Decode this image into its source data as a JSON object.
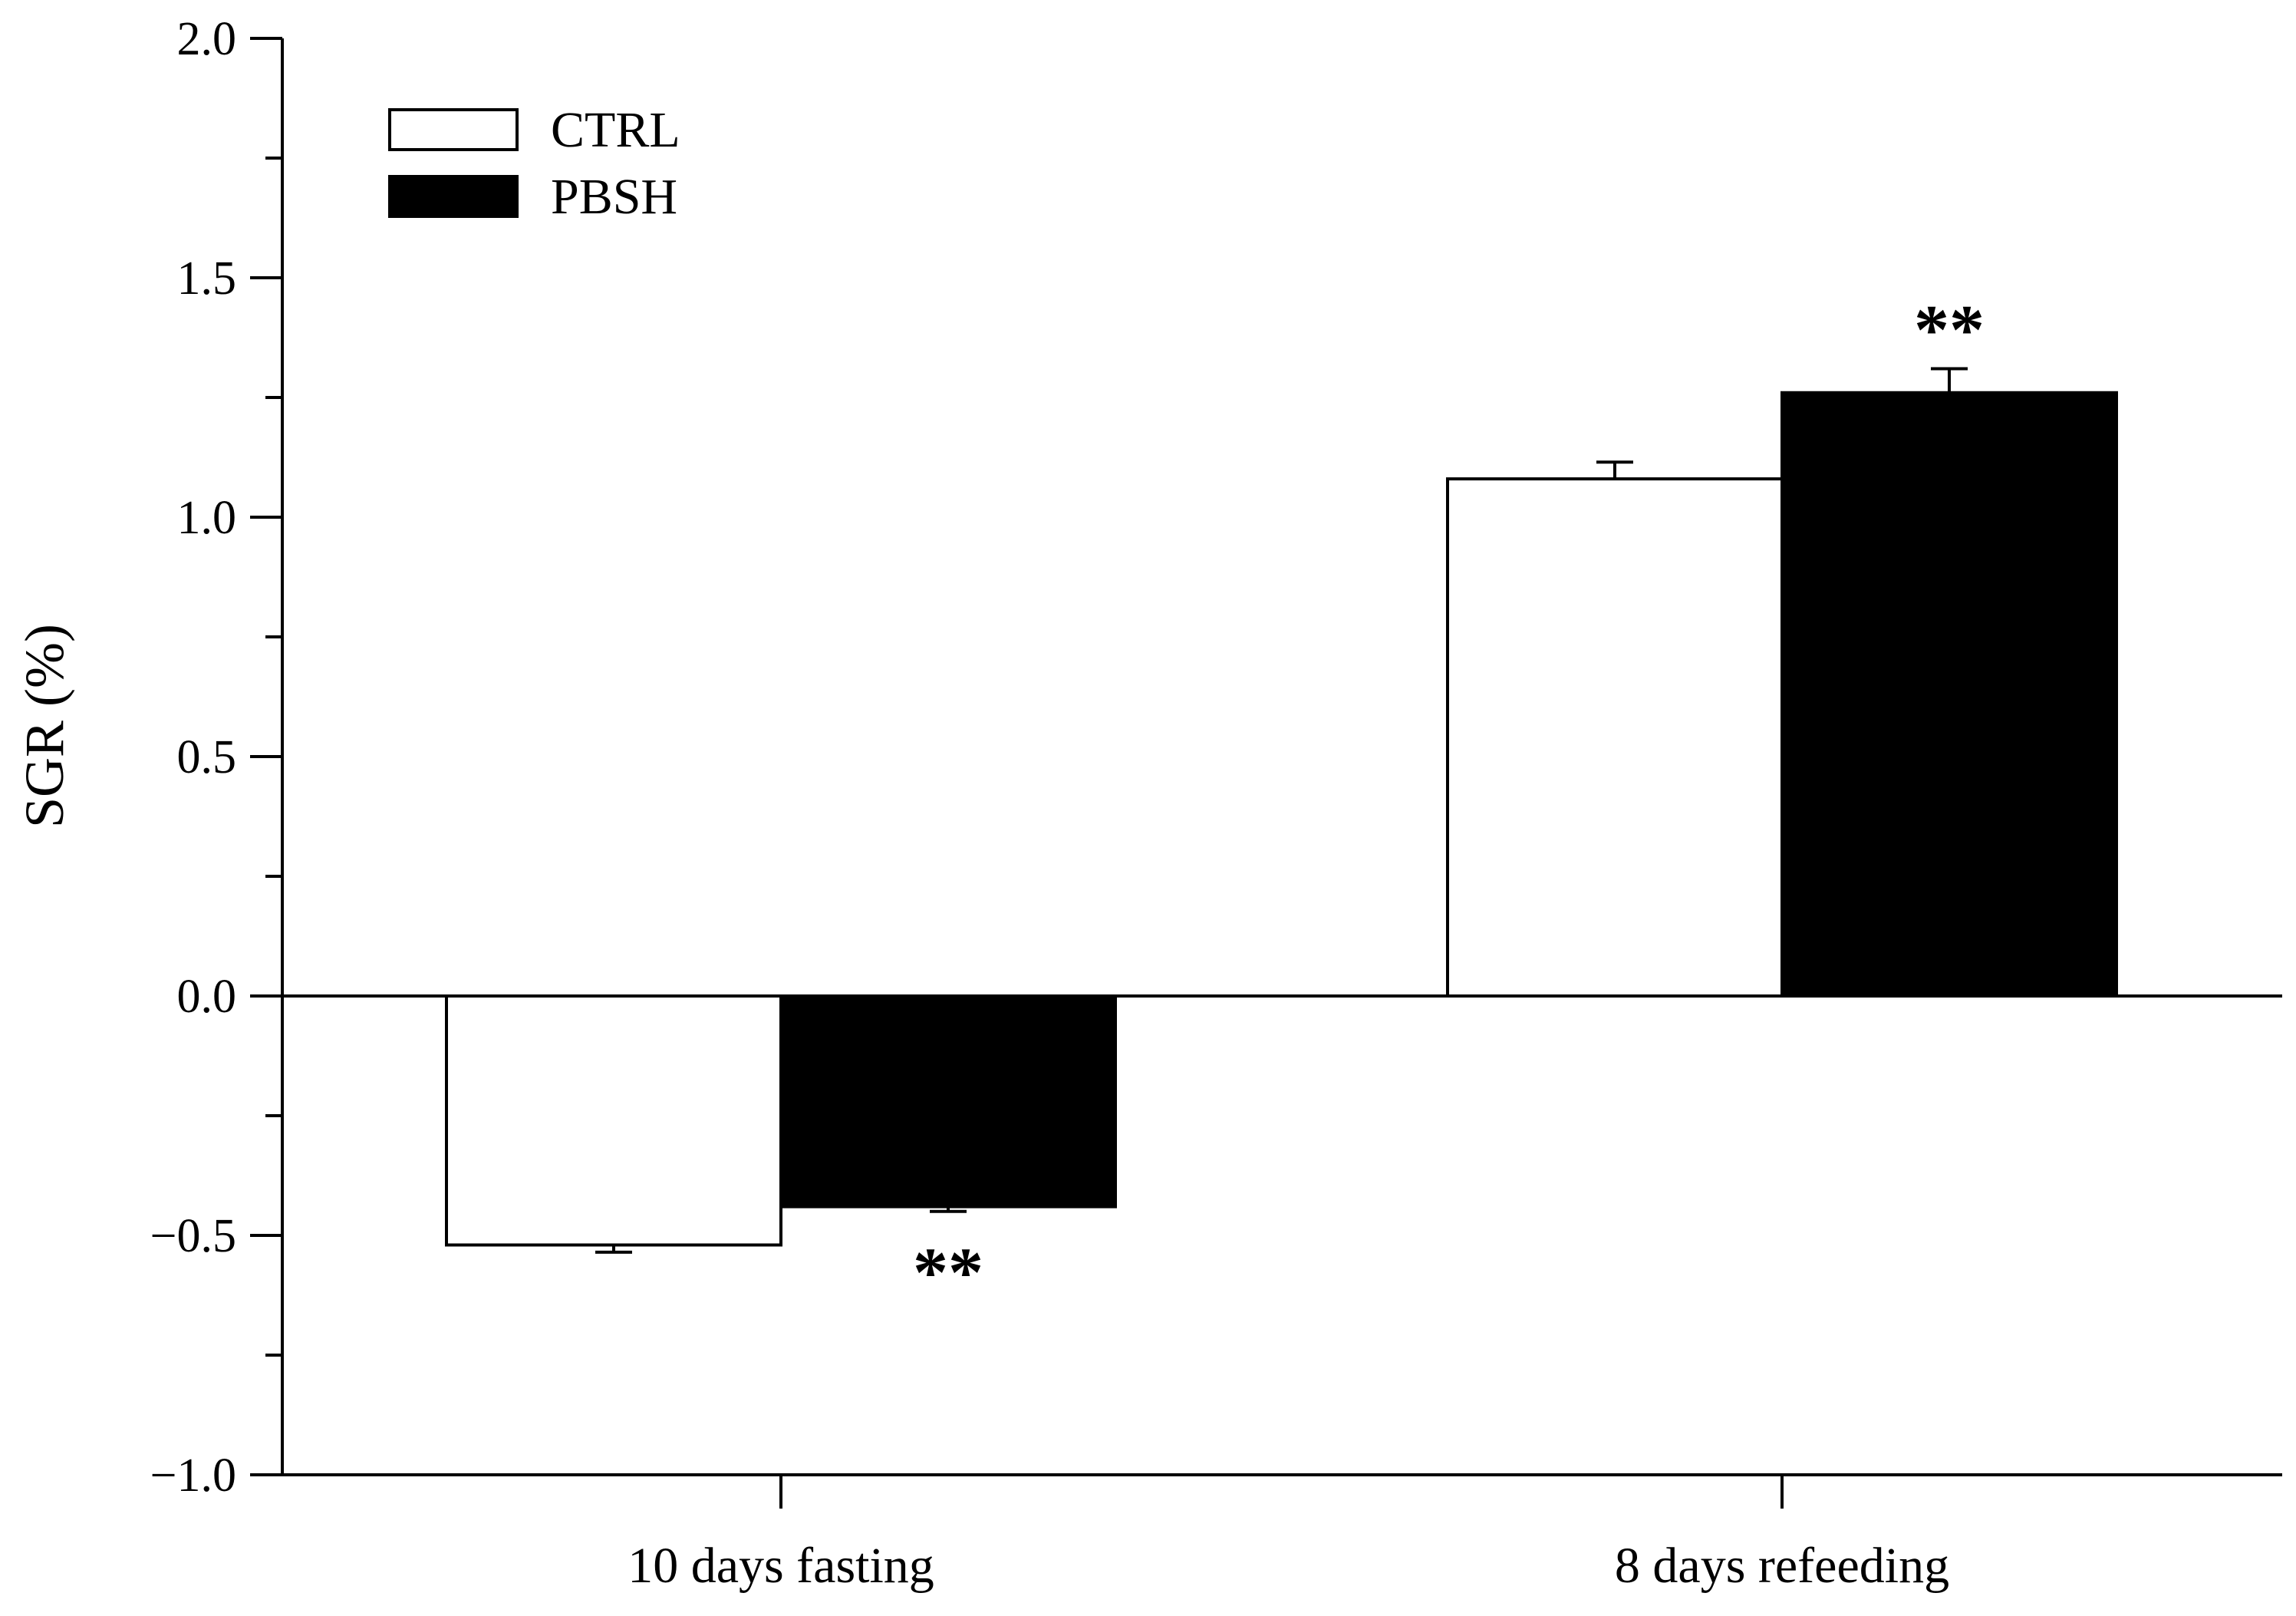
{
  "chart_data": {
    "type": "bar",
    "title": "",
    "xlabel": "",
    "ylabel": "SGR (%)",
    "ylim": [
      -1.0,
      2.0
    ],
    "yticks": [
      {
        "value": -1.0,
        "label": "−1.0"
      },
      {
        "value": -0.5,
        "label": "−0.5"
      },
      {
        "value": 0.0,
        "label": "0.0"
      },
      {
        "value": 0.5,
        "label": "0.5"
      },
      {
        "value": 1.0,
        "label": "1.0"
      },
      {
        "value": 1.5,
        "label": "1.5"
      },
      {
        "value": 2.0,
        "label": "2.0"
      }
    ],
    "categories": [
      "10 days fasting",
      "8 days refeeding"
    ],
    "series": [
      {
        "name": "CTRL",
        "fill": "#ffffff",
        "values": [
          -0.52,
          1.08
        ],
        "errors": [
          0.015,
          0.035
        ],
        "significance": [
          "",
          ""
        ]
      },
      {
        "name": "PBSH",
        "fill": "#000000",
        "values": [
          -0.44,
          1.26
        ],
        "errors": [
          0.01,
          0.05
        ],
        "significance": [
          "**",
          "**"
        ]
      }
    ],
    "legend_position": "top-left",
    "grid": false
  },
  "colors": {
    "axis": "#000000",
    "background": "#ffffff"
  }
}
